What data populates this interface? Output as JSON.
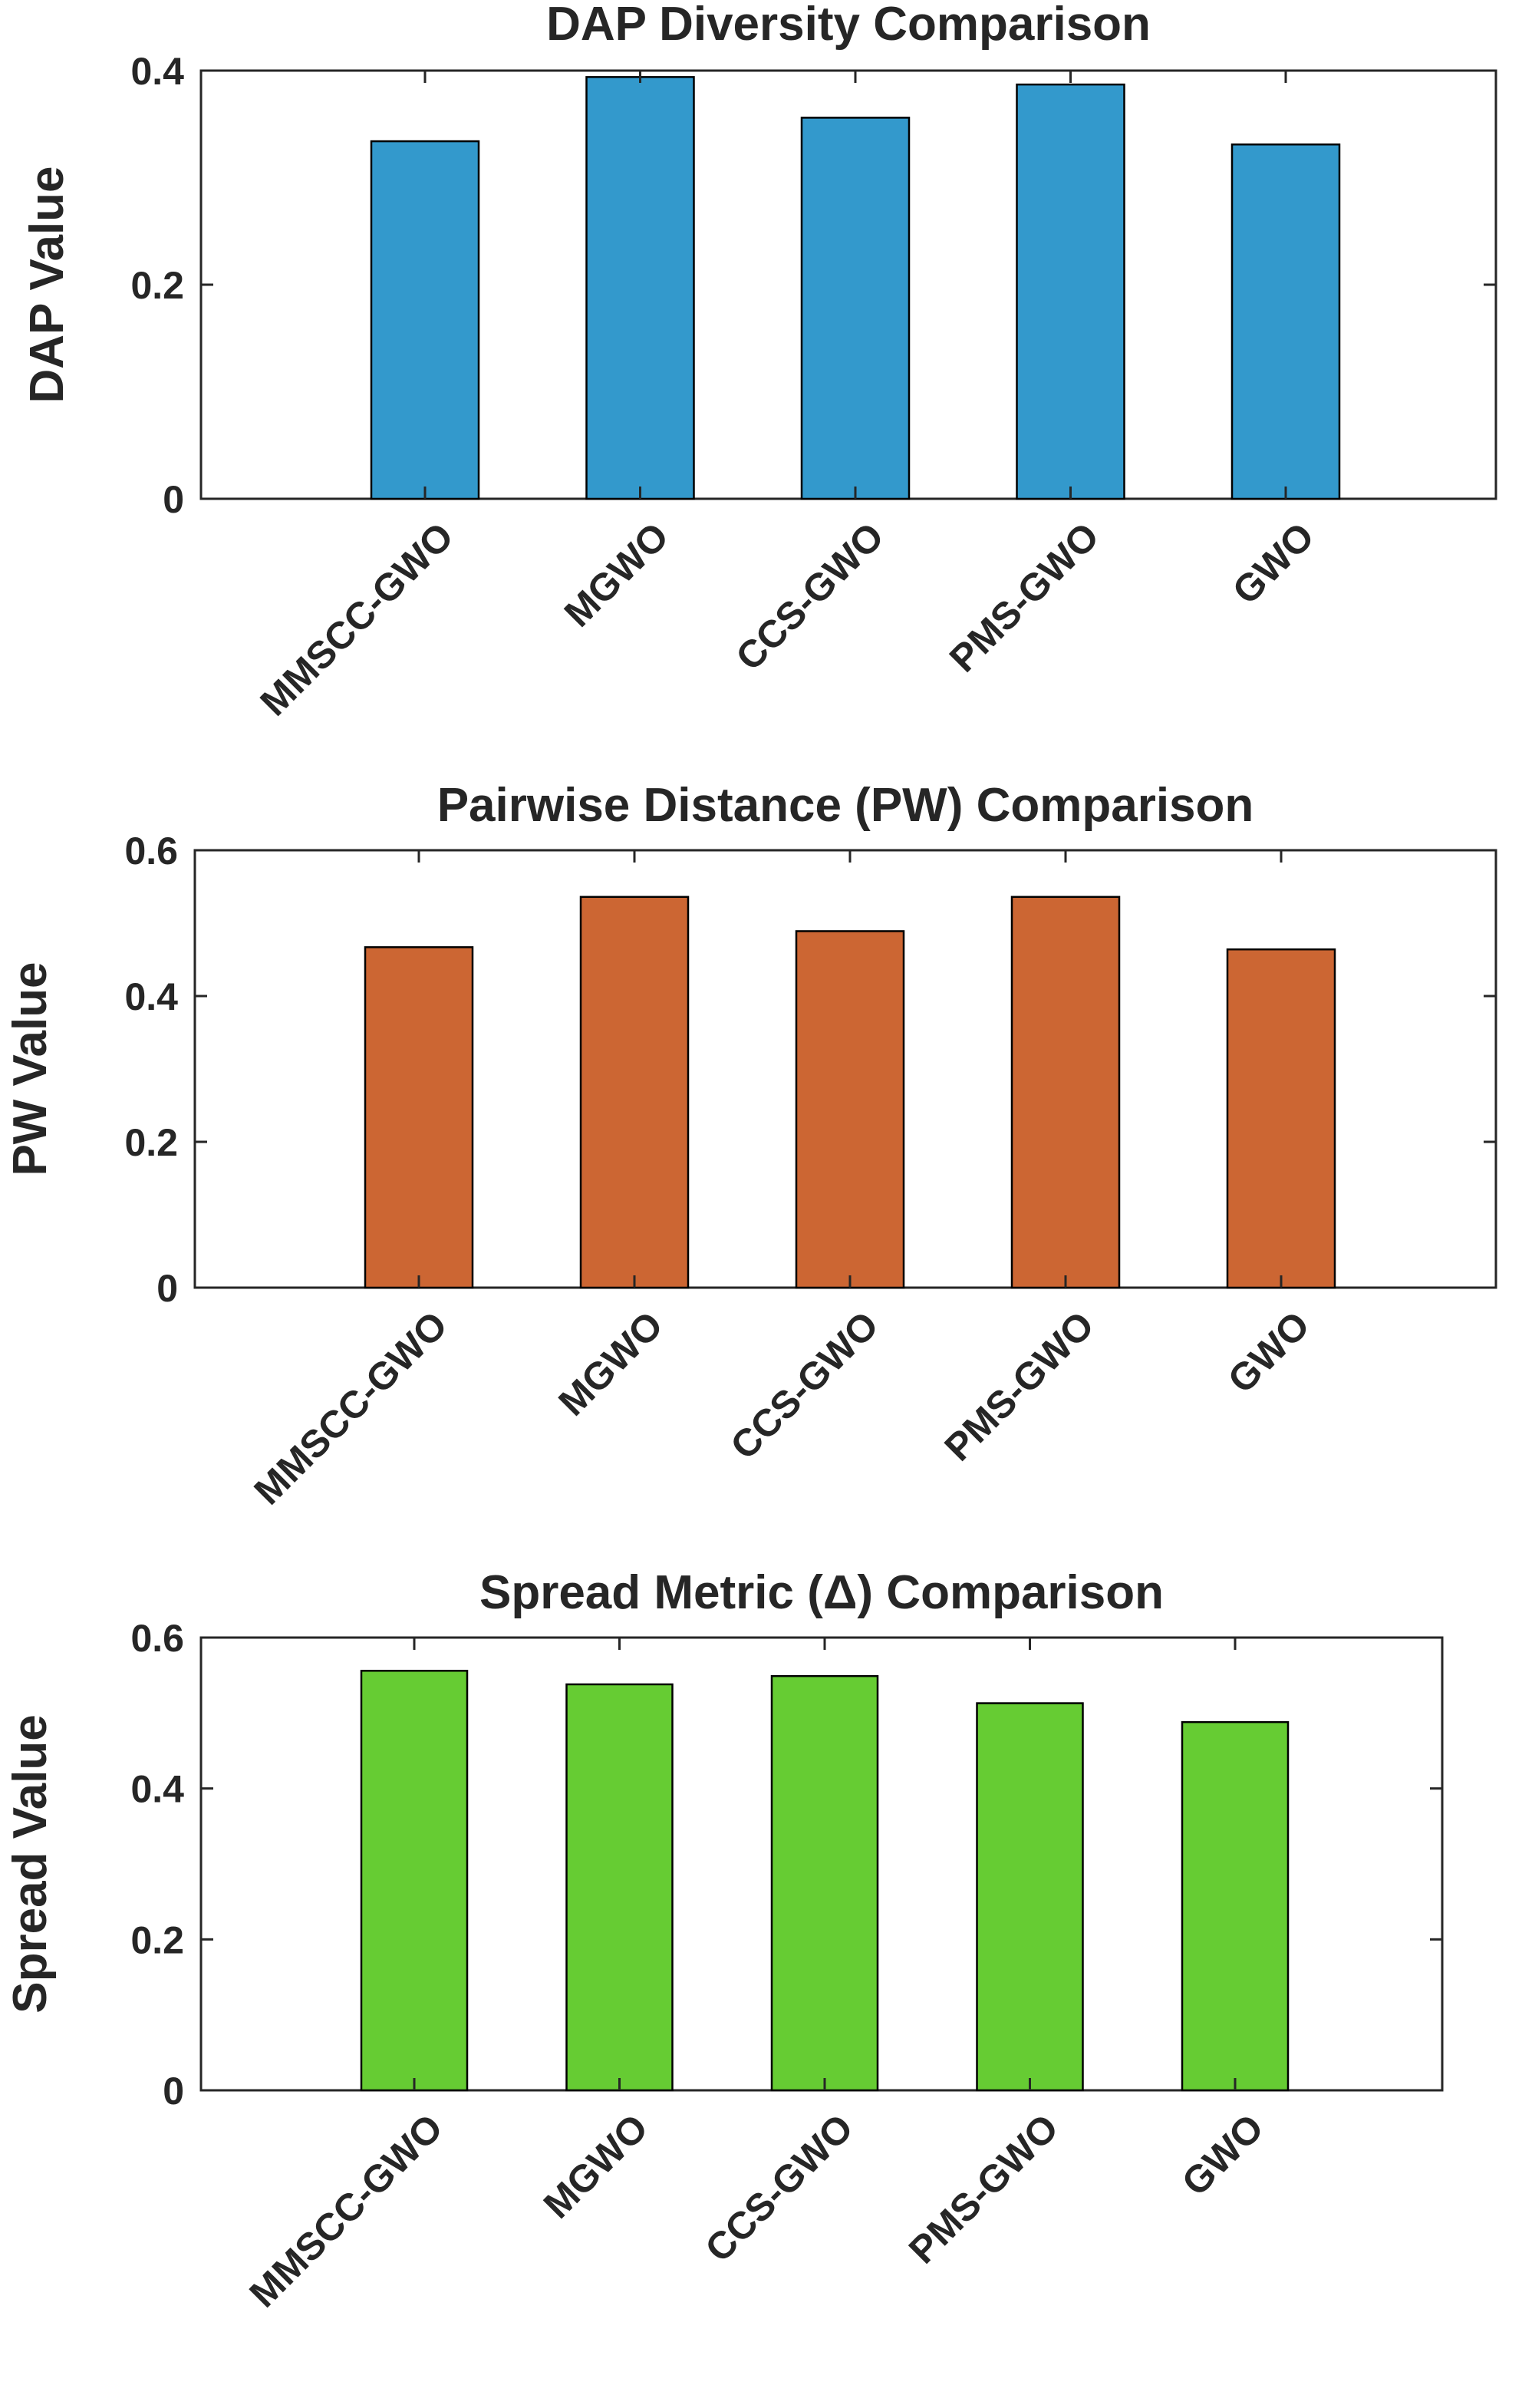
{
  "chart_data": [
    {
      "type": "bar",
      "title": "DAP Diversity Comparison",
      "xlabel": "",
      "ylabel": "DAP Value",
      "categories": [
        "MMSCC-GWO",
        "MGWO",
        "CCS-GWO",
        "PMS-GWO",
        "GWO"
      ],
      "values": [
        0.334,
        0.394,
        0.356,
        0.387,
        0.331
      ],
      "ylim": [
        0,
        0.4
      ],
      "yticks": [
        "0",
        "0.2",
        "0.4"
      ],
      "bar_color": "#3399cc",
      "grid": false
    },
    {
      "type": "bar",
      "title": "Pairwise Distance (PW) Comparison",
      "xlabel": "",
      "ylabel": "PW Value",
      "categories": [
        "MMSCC-GWO",
        "MGWO",
        "CCS-GWO",
        "PMS-GWO",
        "GWO"
      ],
      "values": [
        0.467,
        0.536,
        0.489,
        0.536,
        0.464
      ],
      "ylim": [
        0,
        0.6
      ],
      "yticks": [
        "0",
        "0.2",
        "0.4",
        "0.6"
      ],
      "bar_color": "#cc6633",
      "grid": false
    },
    {
      "type": "bar",
      "title": "Spread Metric (Δ) Comparison",
      "xlabel": "",
      "ylabel": "Spread Value",
      "categories": [
        "MMSCC-GWO",
        "MGWO",
        "CCS-GWO",
        "PMS-GWO",
        "GWO"
      ],
      "values": [
        0.556,
        0.538,
        0.549,
        0.513,
        0.488
      ],
      "ylim": [
        0,
        0.6
      ],
      "yticks": [
        "0",
        "0.2",
        "0.4",
        "0.6"
      ],
      "bar_color": "#66cc33",
      "grid": false
    }
  ]
}
